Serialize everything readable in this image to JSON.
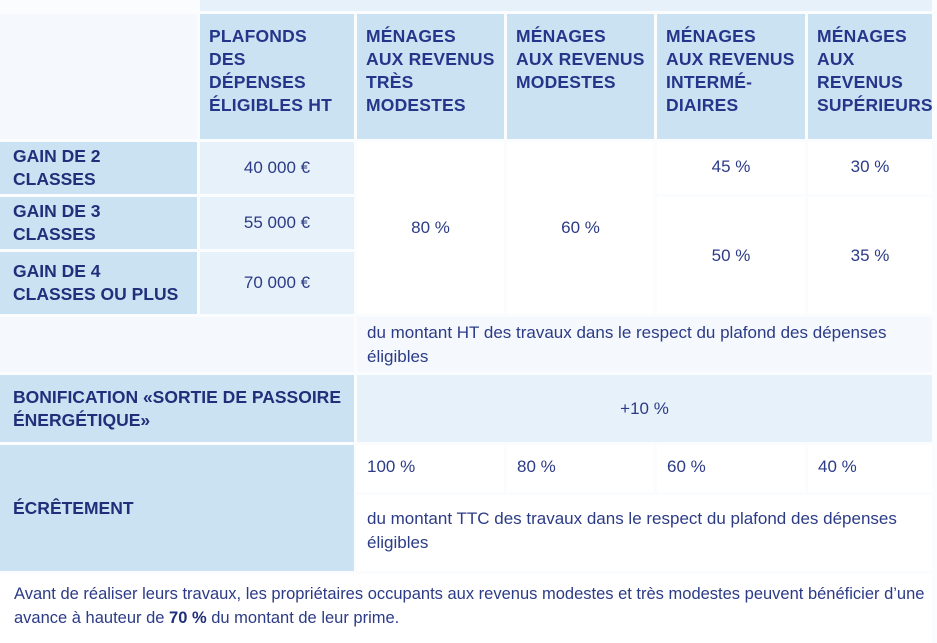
{
  "headers": {
    "plafonds": "PLAFONDS DES DÉPENSES ÉLIGIBLES HT",
    "tres_modestes": "MÉNAGES AUX REVENUS TRÈS MODESTES",
    "modestes": "MÉNAGES AUX REVENUS MODESTES",
    "intermediaires": "MÉNAGES AUX REVENUS INTERMÉ-DIAIRES",
    "superieurs": "MÉNAGES AUX REVENUS SUPÉRIEURS"
  },
  "rows": [
    {
      "label": "GAIN DE 2 CLASSES",
      "plafond": "40 000 €"
    },
    {
      "label": "GAIN DE 3 CLASSES",
      "plafond": "55 000 €"
    },
    {
      "label": "GAIN DE 4 CLASSES OU PLUS",
      "plafond": "70 000 €"
    }
  ],
  "rates": {
    "tres_modestes": "80 %",
    "modestes": "60 %",
    "intermediaires_2": "45 %",
    "superieurs_2": "30 %",
    "intermediaires_34": "50 %",
    "superieurs_34": "35 %"
  },
  "note_ht": "du montant HT des travaux dans le respect du plafond des dépenses éligibles",
  "bonification": {
    "label": "BONIFICATION «SORTIE DE PASSOIRE ÉNERGÉTIQUE»",
    "value": "+10 %"
  },
  "ecretement": {
    "label": "ÉCRÊTEMENT",
    "values": [
      "100 %",
      "80 %",
      "60 %",
      "40 %"
    ],
    "note": "du montant TTC des travaux dans le respect du plafond des dépenses éligibles"
  },
  "footer": {
    "before": "Avant de réaliser leurs travaux, les propriétaires occupants aux revenus modestes et très modestes peuvent bénéficier d’une avance à hauteur de ",
    "bold": "70 %",
    "after": " du montant de leur prime."
  }
}
